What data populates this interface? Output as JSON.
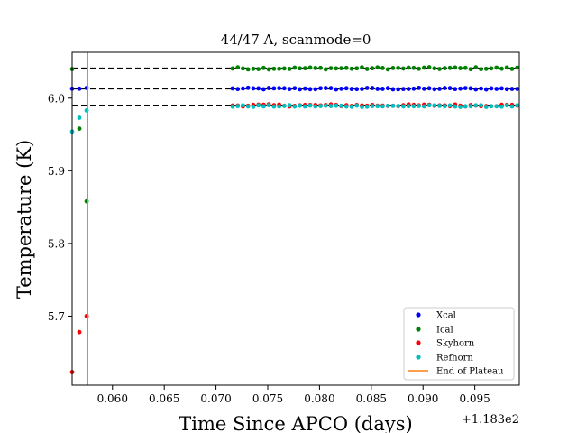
{
  "chart_data": {
    "type": "scatter",
    "title": "44/47 A, scanmode=0",
    "xlabel": "Time Since APCO (days)",
    "ylabel": "Temperature (K)",
    "x_offset_label": "+1.183e2",
    "xlim": [
      0.0561,
      0.0993
    ],
    "ylim": [
      5.605,
      6.063
    ],
    "x_ticks": [
      0.06,
      0.065,
      0.07,
      0.075,
      0.08,
      0.085,
      0.09,
      0.095
    ],
    "x_tick_labels": [
      "0.060",
      "0.065",
      "0.070",
      "0.075",
      "0.080",
      "0.085",
      "0.090",
      "0.095"
    ],
    "y_ticks": [
      5.7,
      5.8,
      5.9,
      6.0
    ],
    "y_tick_labels": [
      "5.7",
      "5.8",
      "5.9",
      "6.0"
    ],
    "plateau_end_x": 0.0576,
    "reference_lines": [
      6.041,
      6.013,
      5.99
    ],
    "plateau_start_x": 0.0716,
    "plateau_step": 0.0005,
    "legend_position": "lower right",
    "series": [
      {
        "name": "Xcal",
        "color": "#0000ff",
        "mean": 6.013,
        "jitter": 0.0012,
        "early_points": [
          [
            0.0561,
            6.013
          ],
          [
            0.0568,
            6.013
          ],
          [
            0.0575,
            6.014
          ]
        ]
      },
      {
        "name": "Ical",
        "color": "#008000",
        "mean": 6.041,
        "jitter": 0.0015,
        "early_points": [
          [
            0.0561,
            6.04
          ],
          [
            0.0568,
            5.958
          ],
          [
            0.0575,
            5.858
          ]
        ]
      },
      {
        "name": "Skyhorn",
        "color": "#ff0000",
        "mean": 5.99,
        "jitter": 0.0015,
        "early_points": [
          [
            0.0561,
            5.623
          ],
          [
            0.0568,
            5.678
          ],
          [
            0.0575,
            5.7
          ]
        ]
      },
      {
        "name": "Refhorn",
        "color": "#00bfbf",
        "mean": 5.989,
        "jitter": 0.0012,
        "early_points": [
          [
            0.0561,
            5.954
          ],
          [
            0.0568,
            5.973
          ],
          [
            0.0575,
            5.983
          ]
        ]
      }
    ],
    "legend_line": {
      "name": "End of Plateau",
      "color": "#ff7f0e"
    }
  }
}
